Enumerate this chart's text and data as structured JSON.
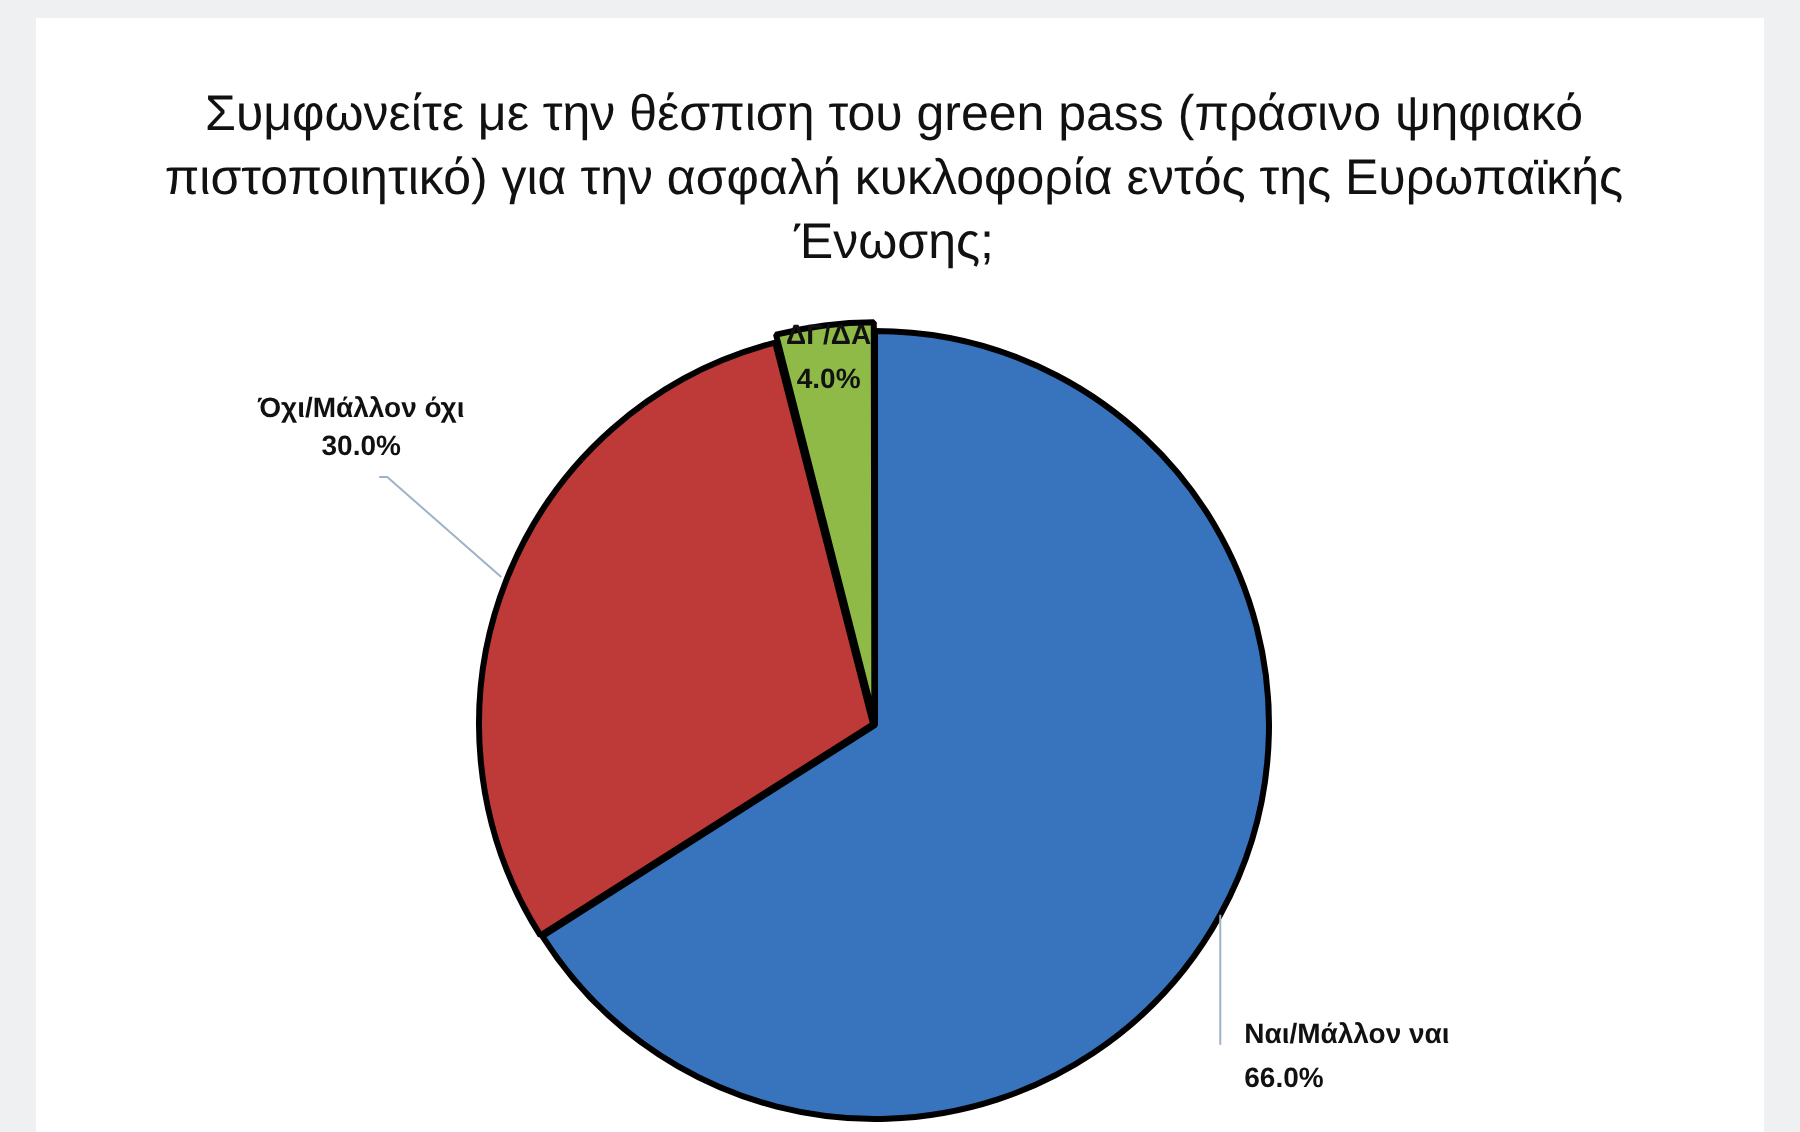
{
  "chart_data": {
    "type": "pie",
    "title": "Συμφωνείτε με την θέσπιση του green pass (πράσινο ψηφιακό πιστοποιητικό) για την ασφαλή κυκλοφορία εντός της Ευρωπαϊκής Ένωσης;",
    "categories": [
      "Ναι/Μάλλον ναι",
      "Όχι/Μάλλον όχι",
      "ΔΓ/ΔΑ"
    ],
    "values": [
      66,
      30,
      4
    ],
    "colors": [
      "#3873be",
      "#be3a38",
      "#8fba48"
    ],
    "value_labels": [
      "66.0%",
      "30.0%",
      "4.0%"
    ]
  }
}
